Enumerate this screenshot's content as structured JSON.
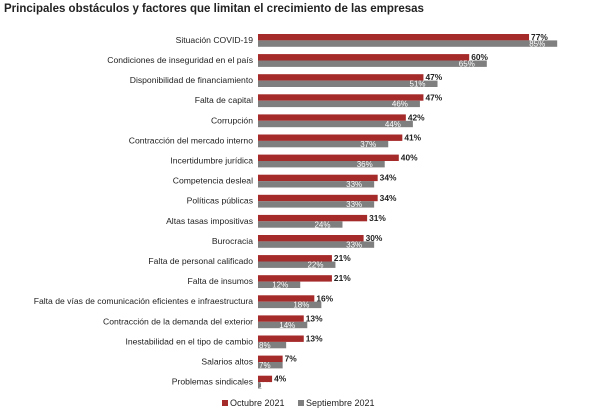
{
  "chart_data": {
    "type": "bar",
    "orientation": "horizontal",
    "title": "Principales obstáculos y factores que limitan el crecimiento de las empresas",
    "categories": [
      "Situación COVID-19",
      "Condiciones de inseguridad en el país",
      "Disponibilidad de financiamiento",
      "Falta de capital",
      "Corrupción",
      "Contracción del mercado interno",
      "Incertidumbre jurídica",
      "Competencia desleal",
      "Políticas públicas",
      "Altas tasas impositivas",
      "Burocracia",
      "Falta de personal calificado",
      "Falta de insumos",
      "Falta de vías de comunicación eficientes e infraestructura",
      "Contracción de la demanda del exterior",
      "Inestabilidad en el tipo de cambio",
      "Salarios altos",
      "Problemas sindicales"
    ],
    "series": [
      {
        "name": "Octubre 2021",
        "color": "#a52a2a",
        "values": [
          77,
          60,
          47,
          47,
          42,
          41,
          40,
          34,
          34,
          31,
          30,
          21,
          21,
          16,
          13,
          13,
          7,
          4
        ],
        "labels": [
          "77%",
          "60%",
          "47%",
          "47%",
          "42%",
          "41%",
          "40%",
          "34%",
          "34%",
          "31%",
          "30%",
          "21%",
          "21%",
          "16%",
          "13%",
          "13%",
          "7%",
          "4%"
        ]
      },
      {
        "name": "Septiembre 2021",
        "color": "#7f7f7f",
        "values": [
          85,
          65,
          51,
          46,
          44,
          37,
          36,
          33,
          33,
          24,
          33,
          22,
          12,
          18,
          14,
          8,
          7,
          1
        ],
        "labels": [
          "85%",
          "65%",
          "51%",
          "46%",
          "44%",
          "37%",
          "36%",
          "33%",
          "33%",
          "24%",
          "33%",
          "22%",
          "12%",
          "18%",
          "14%",
          "8%",
          "7%",
          "1%"
        ]
      }
    ],
    "legend_position": "bottom",
    "grid": false
  }
}
